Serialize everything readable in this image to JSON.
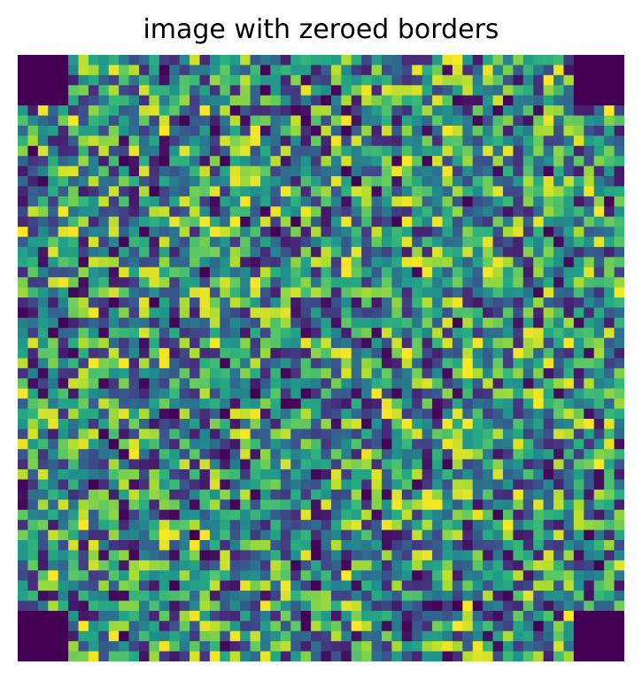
{
  "chart_data": {
    "type": "heatmap",
    "title": "image with zeroed borders",
    "xlabel": "",
    "ylabel": "",
    "axes_visible": false,
    "colormap": "viridis",
    "grid": {
      "rows": 60,
      "cols": 60
    },
    "value_range": [
      0,
      1
    ],
    "values": "uniform random in [0, 1]",
    "zeroed_corners": [
      {
        "corner": "top-left",
        "rows": 5,
        "cols": 5,
        "value": 0
      },
      {
        "corner": "top-right",
        "rows": 5,
        "cols": 5,
        "value": 0
      },
      {
        "corner": "bottom-left",
        "rows": 5,
        "cols": 5,
        "value": 0
      },
      {
        "corner": "bottom-right",
        "rows": 5,
        "cols": 5,
        "value": 0
      }
    ]
  },
  "colors": {
    "viridis_low": "#440154",
    "viridis_mid": "#21918c",
    "viridis_high": "#fde725"
  }
}
